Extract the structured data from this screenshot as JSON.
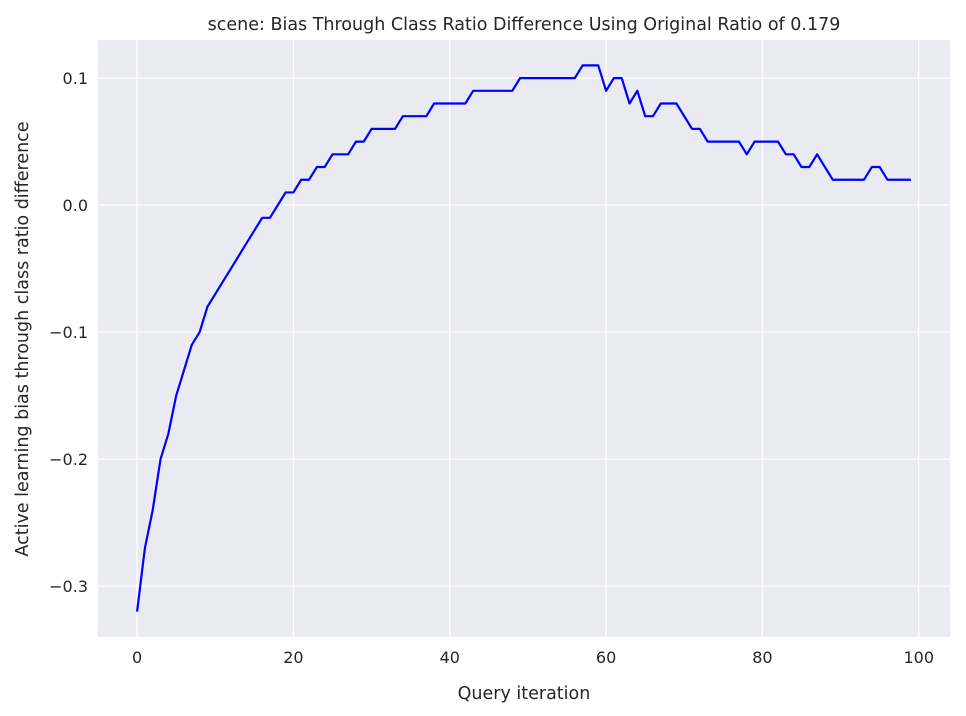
{
  "chart_data": {
    "type": "line",
    "title": "scene: Bias Through Class Ratio Difference Using Original Ratio of 0.179",
    "xlabel": "Query iteration",
    "ylabel": "Active learning bias through class ratio difference",
    "xlim": [
      -5,
      104
    ],
    "ylim": [
      -0.34,
      0.13
    ],
    "xticks": [
      0,
      20,
      40,
      60,
      80,
      100
    ],
    "xtick_labels": [
      "0",
      "20",
      "40",
      "60",
      "80",
      "100"
    ],
    "yticks": [
      -0.3,
      -0.2,
      -0.1,
      0.0,
      0.1
    ],
    "ytick_labels": [
      "−0.3",
      "−0.2",
      "−0.1",
      "0.0",
      "0.1"
    ],
    "grid": true,
    "colors": {
      "background": "#eaeaf2",
      "grid": "#ffffff",
      "line": "#0000ff",
      "text": "#262626"
    },
    "series": [
      {
        "x": [
          0,
          1,
          2,
          3,
          4,
          5,
          6,
          7,
          8,
          9,
          10,
          11,
          12,
          13,
          14,
          15,
          16,
          17,
          18,
          19,
          20,
          21,
          22,
          23,
          24,
          25,
          26,
          27,
          28,
          29,
          30,
          31,
          32,
          33,
          34,
          35,
          36,
          37,
          38,
          39,
          40,
          41,
          42,
          43,
          44,
          45,
          46,
          47,
          48,
          49,
          50,
          51,
          52,
          53,
          54,
          55,
          56,
          57,
          58,
          59,
          60,
          61,
          62,
          63,
          64,
          65,
          66,
          67,
          68,
          69,
          70,
          71,
          72,
          73,
          74,
          75,
          76,
          77,
          78,
          79,
          80,
          81,
          82,
          83,
          84,
          85,
          86,
          87,
          88,
          89,
          90,
          91,
          92,
          93,
          94,
          95,
          96,
          97,
          98,
          99
        ],
        "values": [
          -0.32,
          -0.27,
          -0.24,
          -0.2,
          -0.18,
          -0.15,
          -0.13,
          -0.11,
          -0.1,
          -0.08,
          -0.07,
          -0.06,
          -0.05,
          -0.04,
          -0.03,
          -0.02,
          -0.01,
          -0.01,
          0.0,
          0.01,
          0.01,
          0.02,
          0.02,
          0.03,
          0.03,
          0.04,
          0.04,
          0.04,
          0.05,
          0.05,
          0.06,
          0.06,
          0.06,
          0.06,
          0.07,
          0.07,
          0.07,
          0.07,
          0.08,
          0.08,
          0.08,
          0.08,
          0.08,
          0.09,
          0.09,
          0.09,
          0.09,
          0.09,
          0.09,
          0.1,
          0.1,
          0.1,
          0.1,
          0.1,
          0.1,
          0.1,
          0.1,
          0.11,
          0.11,
          0.11,
          0.09,
          0.1,
          0.1,
          0.08,
          0.09,
          0.07,
          0.07,
          0.08,
          0.08,
          0.08,
          0.07,
          0.06,
          0.06,
          0.05,
          0.05,
          0.05,
          0.05,
          0.05,
          0.04,
          0.05,
          0.05,
          0.05,
          0.05,
          0.04,
          0.04,
          0.03,
          0.03,
          0.04,
          0.03,
          0.02,
          0.02,
          0.02,
          0.02,
          0.02,
          0.03,
          0.03,
          0.02,
          0.02,
          0.02,
          0.02
        ]
      }
    ]
  }
}
